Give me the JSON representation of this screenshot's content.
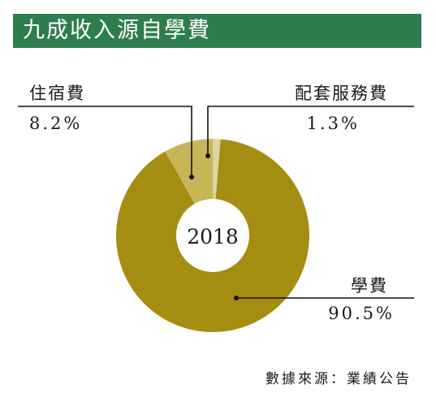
{
  "header": {
    "title": "九成收入源自學費"
  },
  "chart_data": {
    "type": "pie",
    "donut": true,
    "center_label": "2018",
    "slices": [
      {
        "label": "學費",
        "value": 90.5,
        "display": "90.5%",
        "color": "#a48d10"
      },
      {
        "label": "住宿費",
        "value": 8.2,
        "display": "8.2%",
        "color": "#c6b657"
      },
      {
        "label": "配套服務費",
        "value": 1.3,
        "display": "1.3%",
        "color": "#ded4a0"
      }
    ]
  },
  "footer": {
    "source": "數據來源：業績公告"
  }
}
